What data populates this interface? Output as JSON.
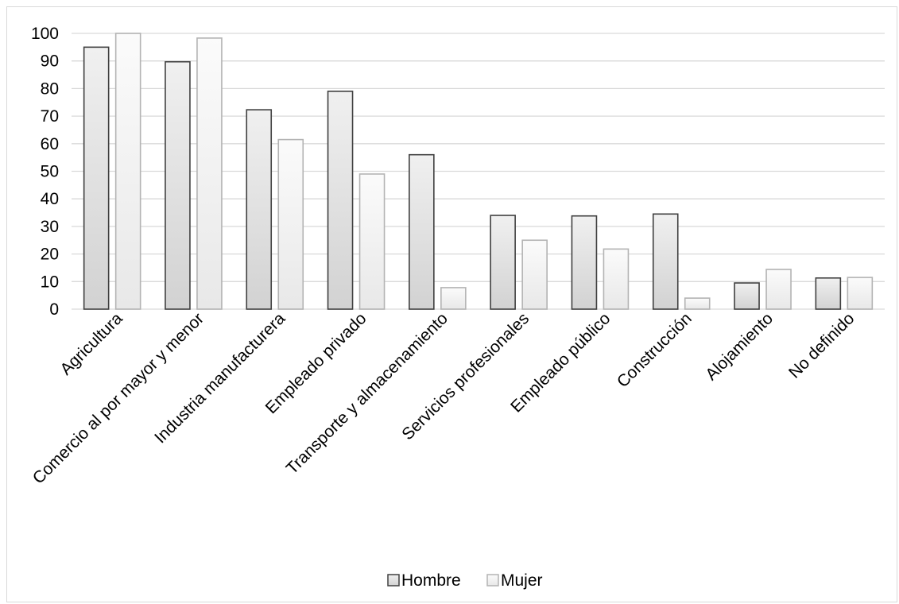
{
  "chart_data": {
    "type": "bar",
    "title": "",
    "xlabel": "",
    "ylabel": "",
    "ylim": [
      0,
      100
    ],
    "yticks": [
      0,
      10,
      20,
      30,
      40,
      50,
      60,
      70,
      80,
      90,
      100
    ],
    "grid": true,
    "legend_position": "bottom",
    "categories": [
      "Agricultura",
      "Comercio al por mayor y menor",
      "Industria manufacturera",
      "Empleado privado",
      "Transporte y almacenamiento",
      "Servicios profesionales",
      "Empleado público",
      "Construcción",
      "Alojamiento",
      "No definido"
    ],
    "series": [
      {
        "name": "Hombre",
        "values": [
          95,
          89.7,
          72.3,
          79,
          56,
          34,
          33.8,
          34.5,
          9.5,
          11.3
        ]
      },
      {
        "name": "Mujer",
        "values": [
          100,
          98.3,
          61.5,
          49,
          7.8,
          25,
          21.8,
          4,
          14.4,
          11.5
        ]
      }
    ],
    "colors": {
      "Hombre_fill_top": "#f0f0f0",
      "Hombre_fill_bottom": "#d2d2d2",
      "Hombre_stroke": "#404040",
      "Mujer_fill_top": "#fbfbfb",
      "Mujer_fill_bottom": "#e8e8e8",
      "Mujer_stroke": "#b3b3b3",
      "grid": "#d9d9d9"
    }
  }
}
